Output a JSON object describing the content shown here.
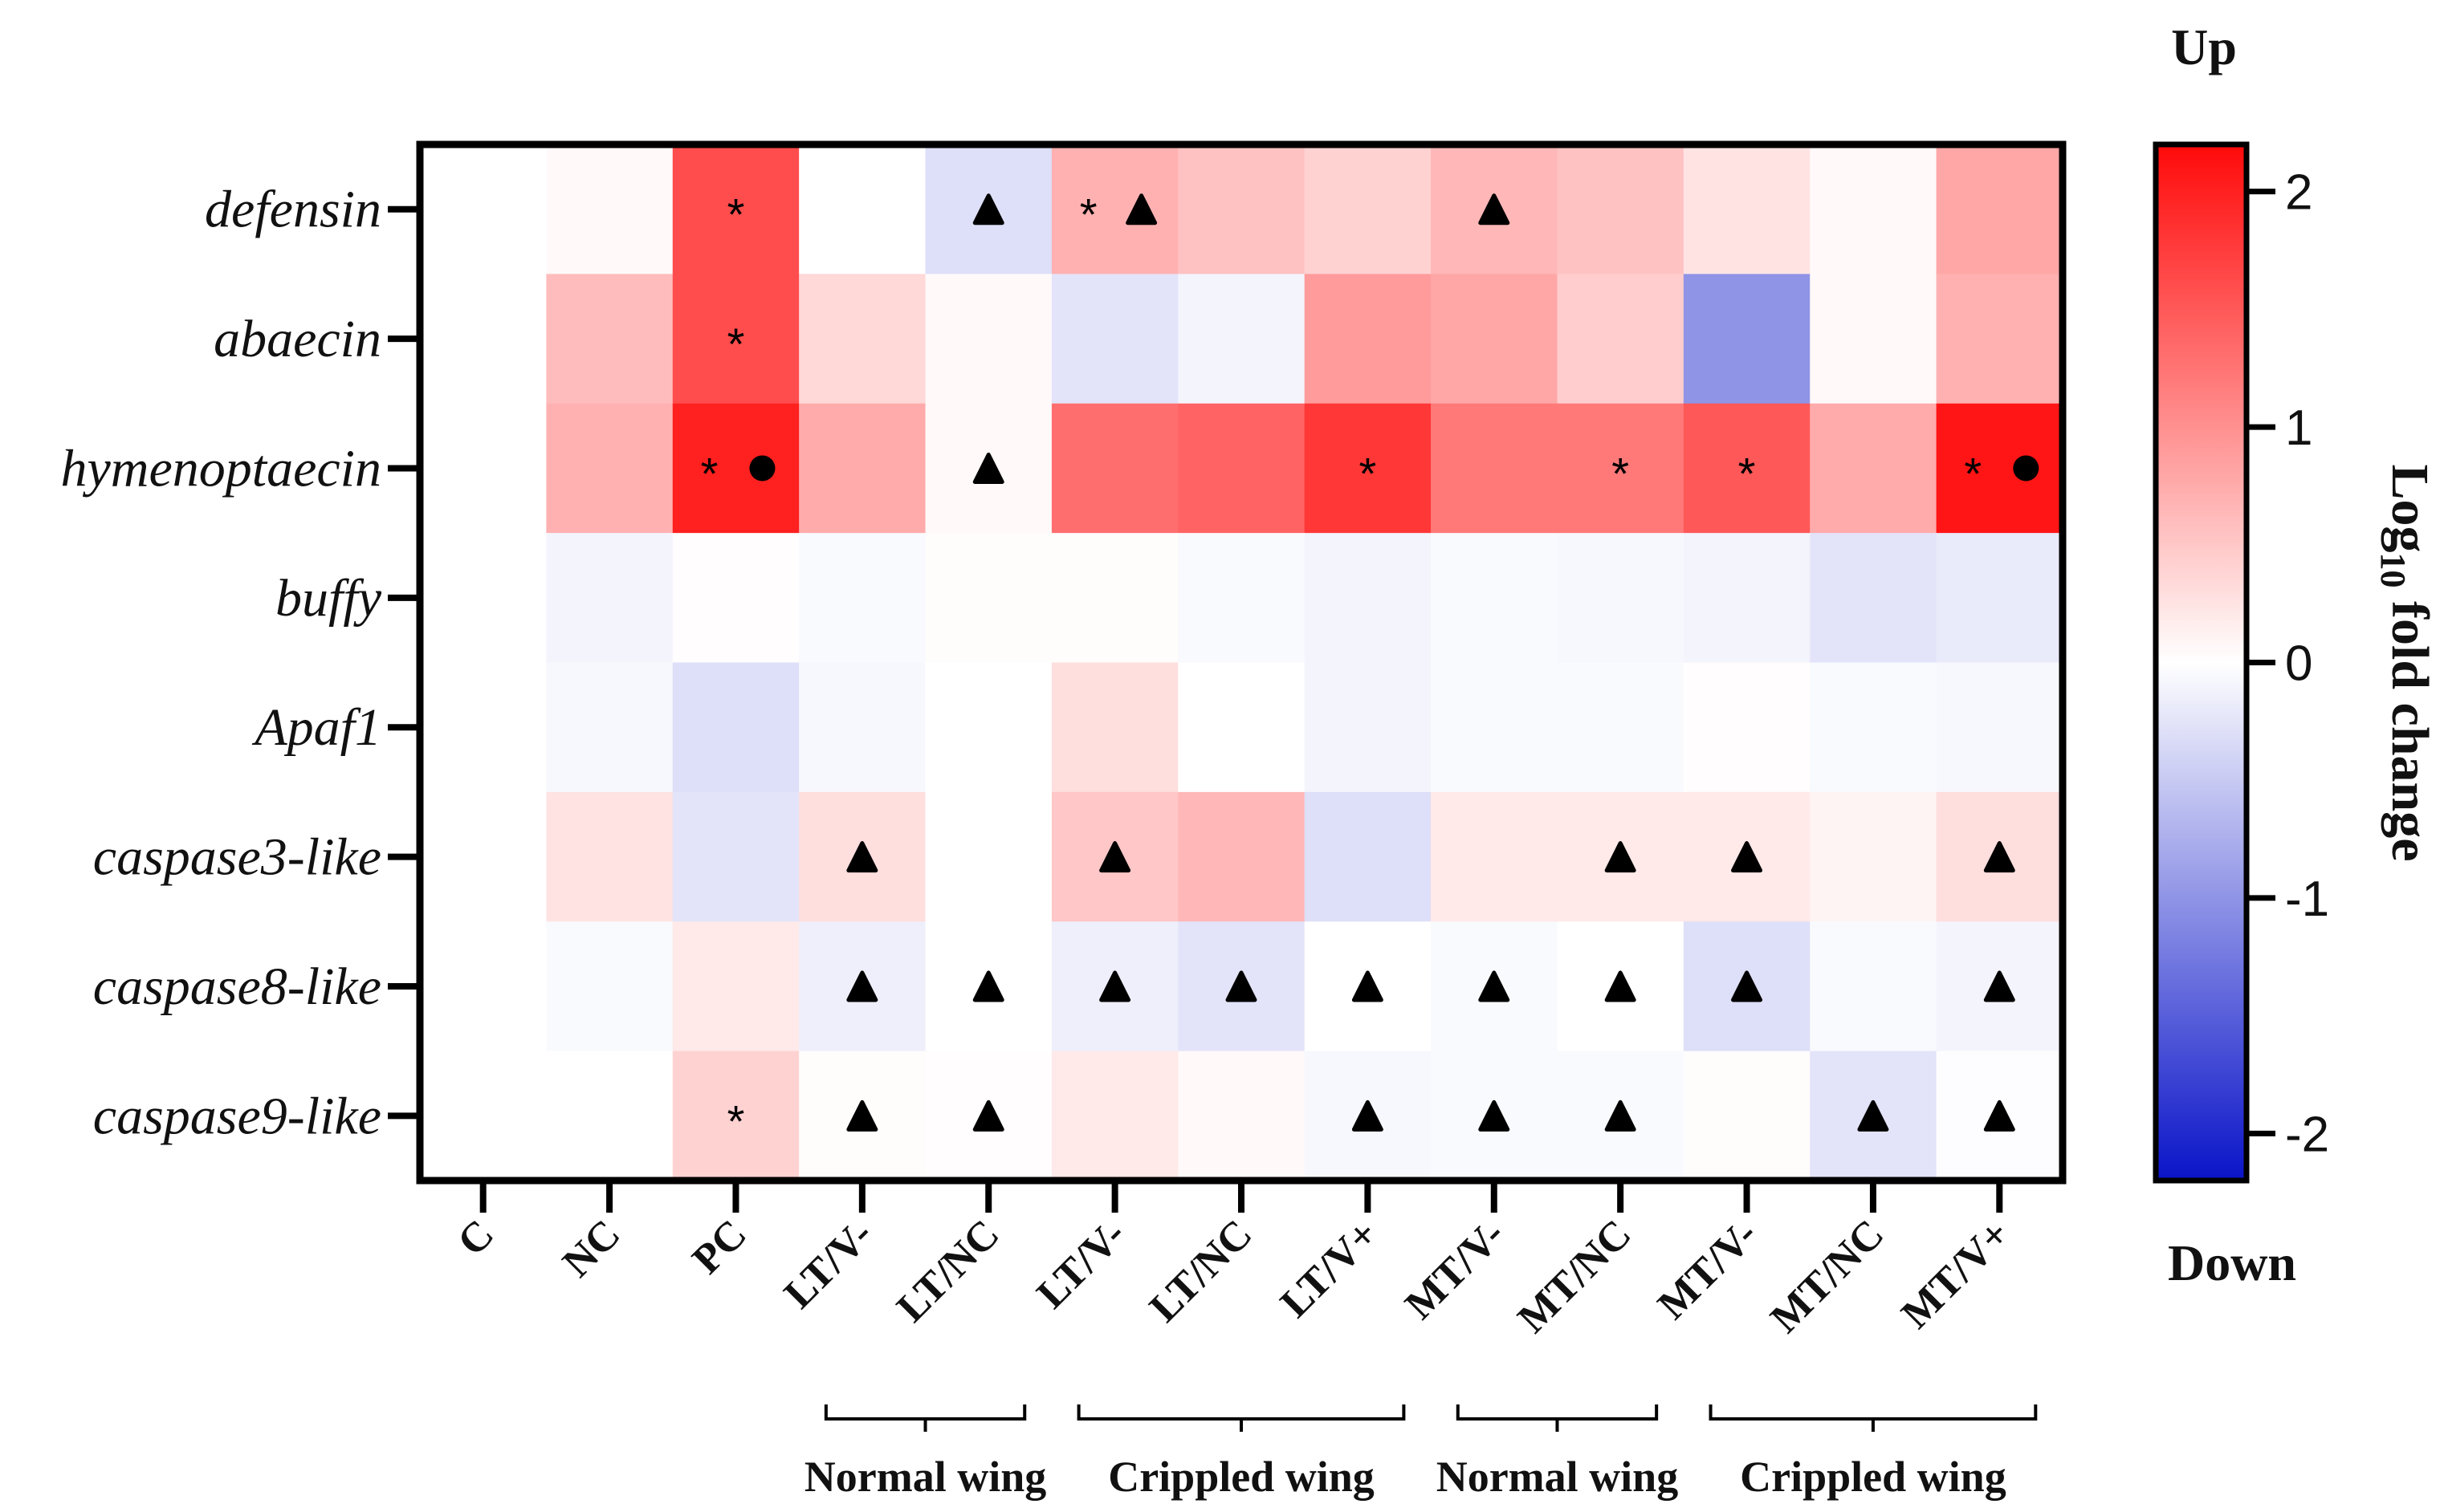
{
  "chart_data": {
    "type": "heatmap",
    "rows": [
      "defensin",
      "abaecin",
      "hymenoptaecin",
      "buffy",
      "Apaf1",
      "caspase3-like",
      "caspase8-like",
      "caspase9-like"
    ],
    "columns": [
      "C",
      "NC",
      "PC",
      "LT/V-",
      "LT/NC",
      "LT/V-",
      "LT/NC",
      "LT/V+",
      "MT/V-",
      "MT/NC",
      "MT/V-",
      "MT/NC",
      "MT/V+"
    ],
    "values": [
      [
        0,
        0.05,
        1.6,
        0,
        -0.3,
        0.7,
        0.55,
        0.4,
        0.65,
        0.55,
        0.25,
        0.05,
        0.8
      ],
      [
        0,
        0.6,
        1.6,
        0.35,
        0.05,
        -0.25,
        -0.1,
        0.9,
        0.8,
        0.45,
        -1.0,
        0.05,
        0.7
      ],
      [
        0,
        0.7,
        2.0,
        0.75,
        0.05,
        1.3,
        1.4,
        1.8,
        1.2,
        1.2,
        1.5,
        0.75,
        2.1
      ],
      [
        0,
        -0.1,
        0.02,
        -0.05,
        0.03,
        0.03,
        -0.05,
        -0.1,
        -0.05,
        -0.07,
        -0.1,
        -0.25,
        -0.2
      ],
      [
        0,
        -0.07,
        -0.3,
        -0.07,
        0,
        0.3,
        0,
        -0.1,
        -0.05,
        -0.05,
        0.02,
        -0.05,
        -0.07
      ],
      [
        0,
        0.25,
        -0.25,
        0.3,
        0,
        0.5,
        0.65,
        -0.3,
        0.2,
        0.2,
        0.2,
        0.1,
        0.3
      ],
      [
        0,
        -0.05,
        0.2,
        -0.15,
        0,
        -0.15,
        -0.25,
        0,
        -0.05,
        0,
        -0.3,
        -0.05,
        -0.1
      ],
      [
        0,
        0,
        0.4,
        0.03,
        0.02,
        0.2,
        0.05,
        -0.07,
        -0.05,
        -0.05,
        0.03,
        -0.25,
        -0.02
      ]
    ],
    "colorbar": {
      "min": -2.2,
      "max": 2.2,
      "ticks": [
        "2",
        "1",
        "0",
        "-1",
        "-2"
      ],
      "tick_values": [
        2,
        1,
        0,
        -1,
        -2
      ],
      "label_top": "Up",
      "label_bottom": "Down",
      "title": "Log10 fold change",
      "title_main": "Log",
      "title_sub": "10",
      "title_rest": " fold change",
      "colors": {
        "low": "#0a14c8",
        "mid": "#ffffff",
        "high": "#ff0a0a"
      }
    },
    "groups": [
      {
        "label": "Normal wing",
        "from_col": 3,
        "to_col": 4
      },
      {
        "label": "Crippled wing",
        "from_col": 5,
        "to_col": 7
      },
      {
        "label": "Normal wing",
        "from_col": 8,
        "to_col": 9
      },
      {
        "label": "Crippled wing",
        "from_col": 10,
        "to_col": 12
      }
    ],
    "markers": [
      {
        "row": 0,
        "col": 2,
        "symbols": [
          "*"
        ]
      },
      {
        "row": 0,
        "col": 4,
        "symbols": [
          "triangle"
        ]
      },
      {
        "row": 0,
        "col": 5,
        "symbols": [
          "*",
          "triangle"
        ]
      },
      {
        "row": 0,
        "col": 8,
        "symbols": [
          "triangle"
        ]
      },
      {
        "row": 1,
        "col": 2,
        "symbols": [
          "*"
        ]
      },
      {
        "row": 2,
        "col": 2,
        "symbols": [
          "*",
          "dot"
        ]
      },
      {
        "row": 2,
        "col": 4,
        "symbols": [
          "triangle"
        ]
      },
      {
        "row": 2,
        "col": 7,
        "symbols": [
          "*"
        ]
      },
      {
        "row": 2,
        "col": 9,
        "symbols": [
          "*"
        ]
      },
      {
        "row": 2,
        "col": 10,
        "symbols": [
          "*"
        ]
      },
      {
        "row": 2,
        "col": 12,
        "symbols": [
          "*",
          "dot"
        ]
      },
      {
        "row": 5,
        "col": 3,
        "symbols": [
          "triangle"
        ]
      },
      {
        "row": 5,
        "col": 5,
        "symbols": [
          "triangle"
        ]
      },
      {
        "row": 5,
        "col": 9,
        "symbols": [
          "triangle"
        ]
      },
      {
        "row": 5,
        "col": 10,
        "symbols": [
          "triangle"
        ]
      },
      {
        "row": 5,
        "col": 12,
        "symbols": [
          "triangle"
        ]
      },
      {
        "row": 6,
        "col": 3,
        "symbols": [
          "triangle"
        ]
      },
      {
        "row": 6,
        "col": 4,
        "symbols": [
          "triangle"
        ]
      },
      {
        "row": 6,
        "col": 5,
        "symbols": [
          "triangle"
        ]
      },
      {
        "row": 6,
        "col": 6,
        "symbols": [
          "triangle"
        ]
      },
      {
        "row": 6,
        "col": 7,
        "symbols": [
          "triangle"
        ]
      },
      {
        "row": 6,
        "col": 8,
        "symbols": [
          "triangle"
        ]
      },
      {
        "row": 6,
        "col": 9,
        "symbols": [
          "triangle"
        ]
      },
      {
        "row": 6,
        "col": 10,
        "symbols": [
          "triangle"
        ]
      },
      {
        "row": 6,
        "col": 12,
        "symbols": [
          "triangle"
        ]
      },
      {
        "row": 7,
        "col": 2,
        "symbols": [
          "*"
        ]
      },
      {
        "row": 7,
        "col": 3,
        "symbols": [
          "triangle"
        ]
      },
      {
        "row": 7,
        "col": 4,
        "symbols": [
          "triangle"
        ]
      },
      {
        "row": 7,
        "col": 7,
        "symbols": [
          "triangle"
        ]
      },
      {
        "row": 7,
        "col": 8,
        "symbols": [
          "triangle"
        ]
      },
      {
        "row": 7,
        "col": 9,
        "symbols": [
          "triangle"
        ]
      },
      {
        "row": 7,
        "col": 11,
        "symbols": [
          "triangle"
        ]
      },
      {
        "row": 7,
        "col": 12,
        "symbols": [
          "triangle"
        ]
      }
    ]
  }
}
